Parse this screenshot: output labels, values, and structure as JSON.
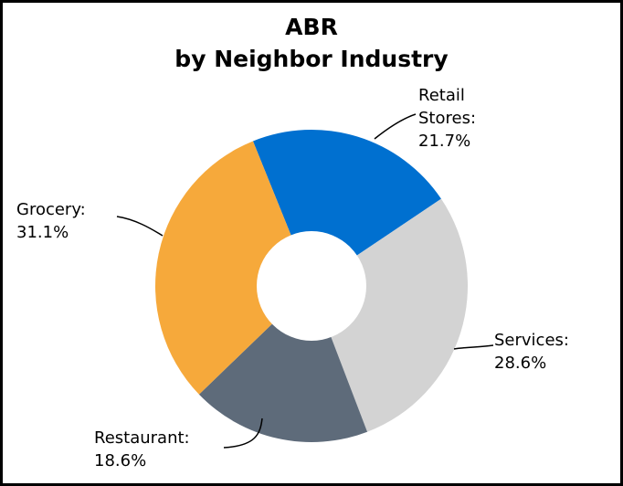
{
  "chart_data": {
    "type": "pie",
    "title": "ABR",
    "subtitle": "by Neighbor Industry",
    "donut": true,
    "slices": [
      {
        "name": "Retail Stores",
        "label_lines": [
          "Retail",
          "Stores:",
          "21.7%"
        ],
        "value": 21.7,
        "color": "#0070D0"
      },
      {
        "name": "Services",
        "label_lines": [
          "Services:",
          "28.6%"
        ],
        "value": 28.6,
        "color": "#D3D3D3"
      },
      {
        "name": "Restaurant",
        "label_lines": [
          "Restaurant:",
          "18.6%"
        ],
        "value": 18.6,
        "color": "#5E6B7A"
      },
      {
        "name": "Grocery",
        "label_lines": [
          "Grocery:",
          "31.1%"
        ],
        "value": 31.1,
        "color": "#F6A93B"
      }
    ]
  }
}
